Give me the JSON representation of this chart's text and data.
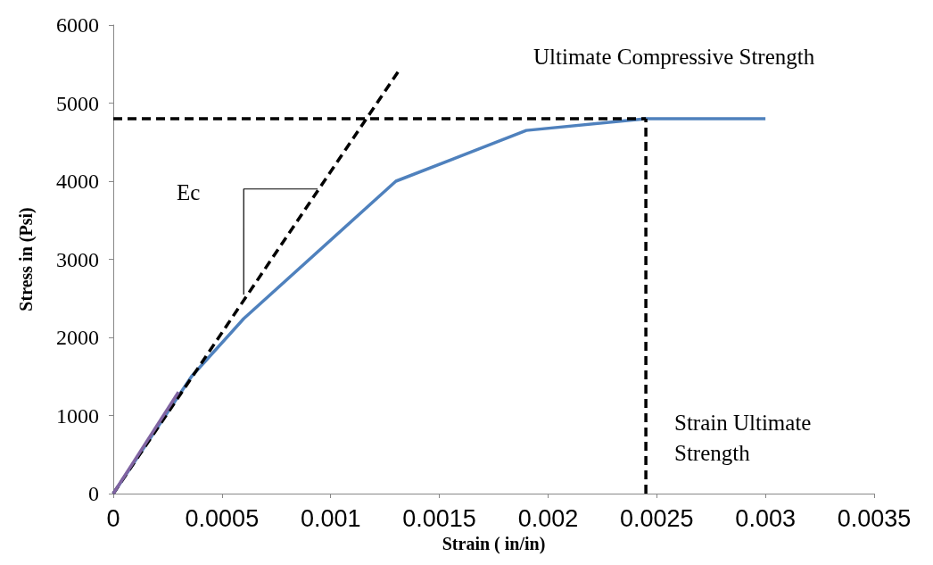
{
  "chart_data": {
    "type": "line",
    "xlabel": "Strain ( in/in)",
    "ylabel": "Stress in (Psi)",
    "xlim": [
      0,
      0.0035
    ],
    "xticks": [
      0,
      0.0005,
      0.001,
      0.0015,
      0.002,
      0.0025,
      0.003,
      0.0035
    ],
    "ylim": [
      0,
      6000
    ],
    "yticks": [
      0,
      1000,
      2000,
      3000,
      4000,
      5000,
      6000
    ],
    "grid": false,
    "marker": "none",
    "series": [
      {
        "color": "#4f81bd",
        "line_style": "solid",
        "x": [
          0,
          0.00036,
          0.0006,
          0.0013,
          0.0019,
          0.00245,
          0.003
        ],
        "values": [
          0,
          1500,
          2240,
          4000,
          4650,
          4800,
          4800
        ]
      },
      {
        "color": "#8064a2",
        "line_style": "solid",
        "x": [
          0,
          0.0003
        ],
        "values": [
          0,
          1300
        ]
      },
      {
        "color": "#000000",
        "line_style": "dashed",
        "x": [
          0,
          0.00131
        ],
        "values": [
          0,
          5400
        ]
      },
      {
        "color": "#000000",
        "line_style": "dashed",
        "x": [
          0,
          0.00245
        ],
        "values": [
          4800,
          4800
        ]
      },
      {
        "color": "#000000",
        "line_style": "dashed",
        "x": [
          0.00245,
          0.00245
        ],
        "values": [
          0,
          4800
        ]
      },
      {
        "color": "#000000",
        "line_style": "solid",
        "x": [
          0.0006,
          0.0006,
          0.00094
        ],
        "values": [
          2550,
          3900,
          3900
        ]
      }
    ],
    "annotations": [
      "Ultimate Compressive Strength",
      "Ec",
      "Strain Ultimate Strength"
    ]
  }
}
